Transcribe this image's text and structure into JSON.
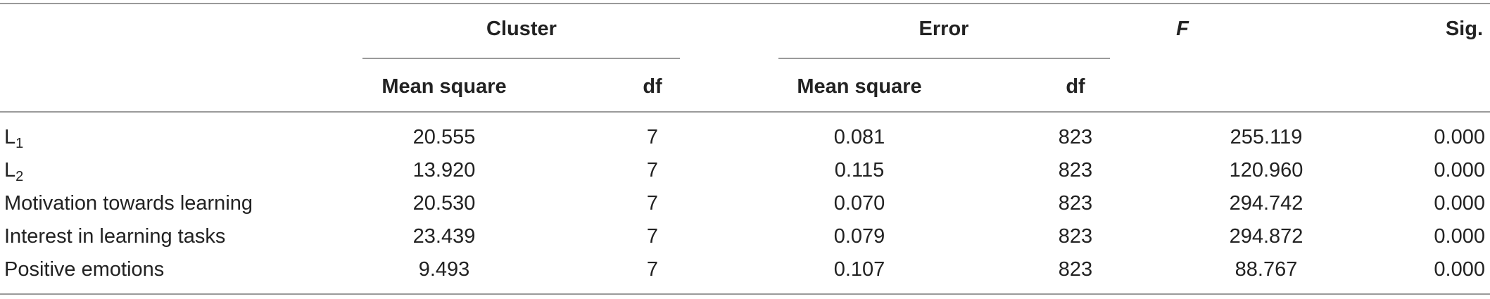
{
  "table": {
    "group_headers": {
      "cluster": "Cluster",
      "error": "Error",
      "f": "F",
      "sig": "Sig."
    },
    "sub_headers": {
      "cluster_mean_square": "Mean square",
      "cluster_df": "df",
      "error_mean_square": "Mean square",
      "error_df": "df"
    },
    "rows": [
      {
        "label": "L",
        "label_sub": "1",
        "cluster_ms": "20.555",
        "cluster_df": "7",
        "error_ms": "0.081",
        "error_df": "823",
        "f": "255.119",
        "sig": "0.000"
      },
      {
        "label": "L",
        "label_sub": "2",
        "cluster_ms": "13.920",
        "cluster_df": "7",
        "error_ms": "0.115",
        "error_df": "823",
        "f": "120.960",
        "sig": "0.000"
      },
      {
        "label": "Motivation towards learning",
        "label_sub": "",
        "cluster_ms": "20.530",
        "cluster_df": "7",
        "error_ms": "0.070",
        "error_df": "823",
        "f": "294.742",
        "sig": "0.000"
      },
      {
        "label": "Interest in learning tasks",
        "label_sub": "",
        "cluster_ms": "23.439",
        "cluster_df": "7",
        "error_ms": "0.079",
        "error_df": "823",
        "f": "294.872",
        "sig": "0.000"
      },
      {
        "label": "Positive emotions",
        "label_sub": "",
        "cluster_ms": "9.493",
        "cluster_df": "7",
        "error_ms": "0.107",
        "error_df": "823",
        "f": "88.767",
        "sig": "0.000"
      }
    ]
  }
}
